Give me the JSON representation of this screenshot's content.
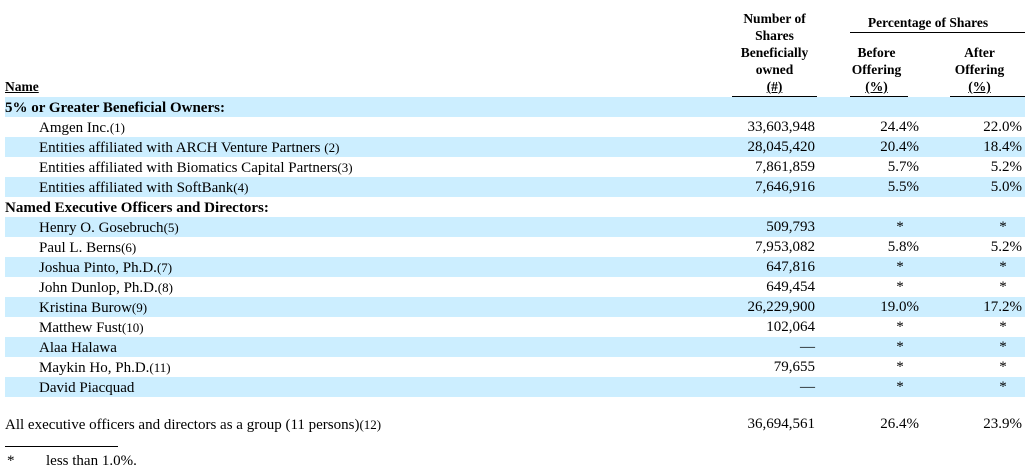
{
  "header": {
    "name": "Name",
    "shares_lines": [
      "Number of",
      "Shares",
      "Beneficially",
      "owned",
      "(#)"
    ],
    "percentage_title": "Percentage of Shares",
    "before_lines": [
      "Before",
      "Offering",
      "(%)"
    ],
    "after_lines": [
      "After",
      "Offering",
      "(%)"
    ]
  },
  "rows": [
    {
      "name": "5% or Greater Beneficial Owners:",
      "fn": "",
      "shares": "",
      "before": "",
      "after": "",
      "section": true
    },
    {
      "name": "Amgen Inc.",
      "fn": "(1)",
      "shares": "33,603,948",
      "before": "24.4%",
      "after": "22.0%"
    },
    {
      "name": "Entities affiliated with ARCH Venture Partners ",
      "fn": "(2)",
      "shares": "28,045,420",
      "before": "20.4%",
      "after": "18.4%"
    },
    {
      "name": "Entities affiliated with Biomatics Capital Partners",
      "fn": "(3)",
      "shares": "7,861,859",
      "before": "5.7%",
      "after": "5.2%"
    },
    {
      "name": "Entities affiliated with SoftBank",
      "fn": "(4)",
      "shares": "7,646,916",
      "before": "5.5%",
      "after": "5.0%"
    },
    {
      "name": "Named Executive Officers and Directors:",
      "fn": "",
      "shares": "",
      "before": "",
      "after": "",
      "section": true
    },
    {
      "name": "Henry O. Gosebruch",
      "fn": "(5)",
      "shares": "509,793",
      "before": "*",
      "after": "*"
    },
    {
      "name": "Paul L. Berns",
      "fn": "(6)",
      "shares": "7,953,082",
      "before": "5.8%",
      "after": "5.2%"
    },
    {
      "name": "Joshua Pinto, Ph.D.",
      "fn": "(7)",
      "shares": "647,816",
      "before": "*",
      "after": "*"
    },
    {
      "name": "John Dunlop, Ph.D.",
      "fn": "(8)",
      "shares": "649,454",
      "before": "*",
      "after": "*"
    },
    {
      "name": "Kristina Burow",
      "fn": "(9)",
      "shares": "26,229,900",
      "before": "19.0%",
      "after": "17.2%"
    },
    {
      "name": "Matthew Fust",
      "fn": "(10)",
      "shares": "102,064",
      "before": "*",
      "after": "*"
    },
    {
      "name": "Alaa Halawa",
      "fn": "",
      "shares": "—",
      "before": "*",
      "after": "*"
    },
    {
      "name": "Maykin Ho, Ph.D.",
      "fn": "(11)",
      "shares": "79,655",
      "before": "*",
      "after": "*"
    },
    {
      "name": "David Piacquad",
      "fn": "",
      "shares": "—",
      "before": "*",
      "after": "*"
    }
  ],
  "total": {
    "name": "All executive officers and directors as a group (11 persons)",
    "fn": "(12)",
    "shares": "36,694,561",
    "before": "26.4%",
    "after": "23.9%"
  },
  "footnote": {
    "mark": "*",
    "text": "less than 1.0%."
  },
  "colors": {
    "row_shade": "#cceeff"
  }
}
